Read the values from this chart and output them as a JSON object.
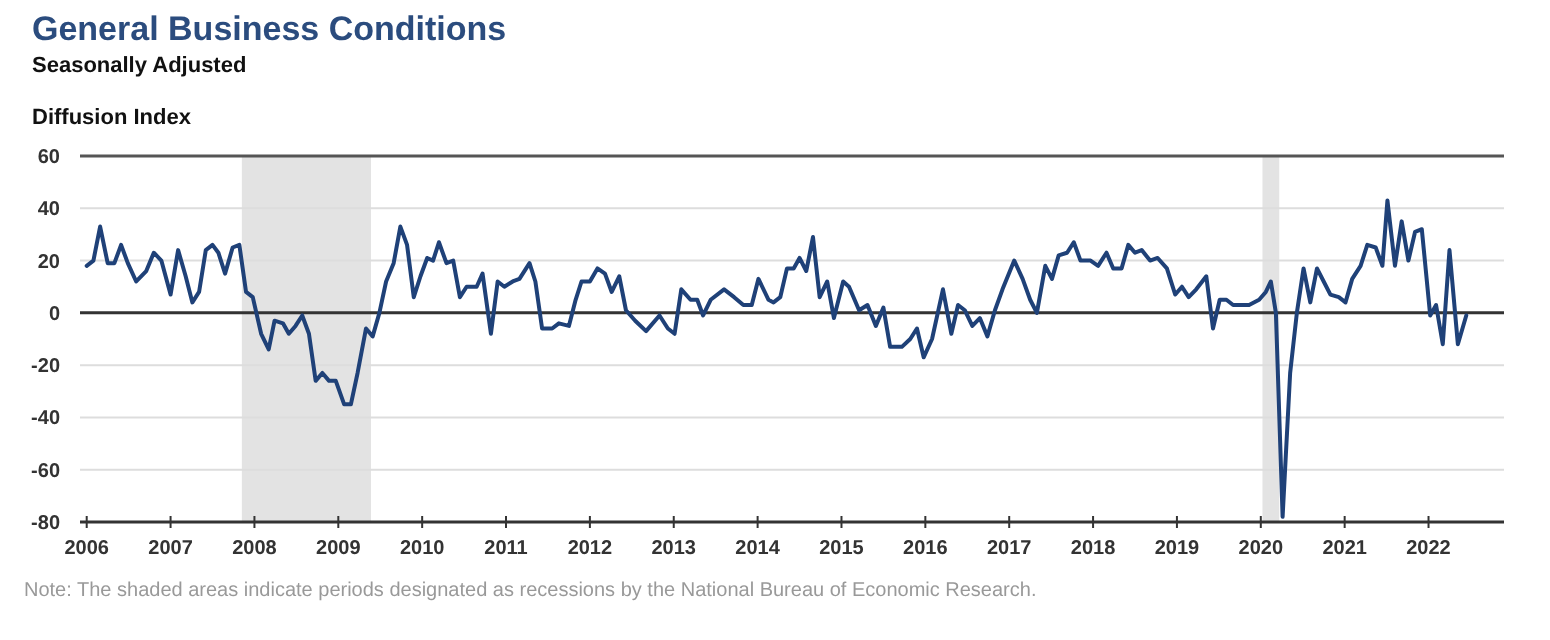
{
  "chart_data": {
    "type": "line",
    "title": "General Business Conditions",
    "subtitle": "Seasonally Adjusted",
    "ylabel": "Diffusion Index",
    "annotations": [
      "Note: The shaded areas indicate periods designated as recessions by the National Bureau of Economic Research."
    ],
    "xlim": [
      2005.92,
      2022.9
    ],
    "xticks": [
      2006,
      2007,
      2008,
      2009,
      2010,
      2011,
      2012,
      2013,
      2014,
      2015,
      2016,
      2017,
      2018,
      2019,
      2020,
      2021,
      2022
    ],
    "ylim": [
      -80,
      60
    ],
    "yticks": [
      -80,
      -60,
      -40,
      -20,
      0,
      20,
      40,
      60
    ],
    "grid": "y",
    "marker": "none",
    "line_style": "solid",
    "ref_lines": [
      {
        "axis": "y",
        "value": 0,
        "color": "#333333"
      }
    ],
    "bands": [
      {
        "axis": "x",
        "from": 2007.85,
        "to": 2009.39,
        "color": "#e3e3e3"
      },
      {
        "axis": "x",
        "from": 2020.02,
        "to": 2020.22,
        "color": "#e3e3e3"
      }
    ],
    "series": [
      {
        "color": "#1f4178",
        "x": [
          2006.0,
          2006.08,
          2006.16,
          2006.25,
          2006.33,
          2006.41,
          2006.49,
          2006.59,
          2006.71,
          2006.8,
          2006.89,
          2007.0,
          2007.09,
          2007.18,
          2007.26,
          2007.34,
          2007.42,
          2007.5,
          2007.57,
          2007.65,
          2007.74,
          2007.82,
          2007.9,
          2007.98,
          2008.08,
          2008.17,
          2008.24,
          2008.34,
          2008.41,
          2008.49,
          2008.57,
          2008.65,
          2008.73,
          2008.81,
          2008.89,
          2008.97,
          2009.07,
          2009.15,
          2009.23,
          2009.33,
          2009.41,
          2009.49,
          2009.57,
          2009.66,
          2009.74,
          2009.82,
          2009.9,
          2009.98,
          2010.06,
          2010.13,
          2010.2,
          2010.29,
          2010.37,
          2010.45,
          2010.53,
          2010.65,
          2010.72,
          2010.82,
          2010.9,
          2010.98,
          2011.08,
          2011.16,
          2011.28,
          2011.35,
          2011.43,
          2011.55,
          2011.63,
          2011.75,
          2011.83,
          2011.9,
          2012.0,
          2012.09,
          2012.18,
          2012.26,
          2012.35,
          2012.43,
          2012.54,
          2012.67,
          2012.83,
          2012.93,
          2013.01,
          2013.09,
          2013.2,
          2013.28,
          2013.35,
          2013.44,
          2013.6,
          2013.72,
          2013.83,
          2013.93,
          2014.01,
          2014.13,
          2014.19,
          2014.27,
          2014.35,
          2014.43,
          2014.5,
          2014.58,
          2014.66,
          2014.74,
          2014.83,
          2014.91,
          2015.02,
          2015.09,
          2015.21,
          2015.31,
          2015.41,
          2015.5,
          2015.58,
          2015.72,
          2015.82,
          2015.9,
          2015.98,
          2016.08,
          2016.21,
          2016.31,
          2016.39,
          2016.47,
          2016.56,
          2016.65,
          2016.74,
          2016.83,
          2016.92,
          2017.06,
          2017.16,
          2017.25,
          2017.33,
          2017.43,
          2017.51,
          2017.59,
          2017.69,
          2017.77,
          2017.85,
          2017.97,
          2018.06,
          2018.16,
          2018.24,
          2018.34,
          2018.42,
          2018.5,
          2018.58,
          2018.68,
          2018.77,
          2018.88,
          2018.98,
          2019.06,
          2019.14,
          2019.23,
          2019.35,
          2019.43,
          2019.51,
          2019.59,
          2019.67,
          2019.77,
          2019.86,
          2019.98,
          2020.06,
          2020.12,
          2020.18,
          2020.26,
          2020.35,
          2020.43,
          2020.51,
          2020.59,
          2020.67,
          2020.75,
          2020.83,
          2020.93,
          2021.01,
          2021.09,
          2021.19,
          2021.27,
          2021.37,
          2021.45,
          2021.51,
          2021.6,
          2021.68,
          2021.76,
          2021.84,
          2021.92,
          2022.02,
          2022.09,
          2022.17,
          2022.25,
          2022.35,
          2022.45
        ],
        "values": [
          18,
          20,
          33,
          19,
          19,
          26,
          19,
          12,
          16,
          23,
          20,
          7,
          24,
          14,
          4,
          8,
          24,
          26,
          23,
          15,
          25,
          26,
          8,
          6,
          -8,
          -14,
          -3,
          -4,
          -8,
          -5,
          -1,
          -8,
          -26,
          -23,
          -26,
          -26,
          -35,
          -35,
          -23,
          -6,
          -9,
          0,
          12,
          19,
          33,
          26,
          6,
          14,
          21,
          20,
          27,
          19,
          20,
          6,
          10,
          10,
          15,
          -8,
          12,
          10,
          12,
          13,
          19,
          12,
          -6,
          -6,
          -4,
          -5,
          5,
          12,
          12,
          17,
          15,
          8,
          14,
          1,
          -3,
          -7,
          -1,
          -6,
          -8,
          9,
          5,
          5,
          -1,
          5,
          9,
          6,
          3,
          3,
          13,
          5,
          4,
          6,
          17,
          17,
          21,
          16,
          29,
          6,
          12,
          -2,
          12,
          10,
          1,
          3,
          -5,
          2,
          -13,
          -13,
          -10,
          -6,
          -17,
          -10,
          9,
          -8,
          3,
          1,
          -5,
          -2,
          -9,
          1,
          9,
          20,
          13,
          5,
          0,
          18,
          13,
          22,
          23,
          27,
          20,
          20,
          18,
          23,
          17,
          17,
          26,
          23,
          24,
          20,
          21,
          17,
          7,
          10,
          6,
          9,
          14,
          -6,
          5,
          5,
          3,
          3,
          3,
          5,
          8,
          12,
          0,
          -78,
          -23,
          0,
          17,
          4,
          17,
          12,
          7,
          6,
          4,
          13,
          18,
          26,
          25,
          18,
          43,
          18,
          35,
          20,
          31,
          32,
          -1,
          3,
          -12,
          24,
          -12,
          -1
        ]
      }
    ]
  }
}
